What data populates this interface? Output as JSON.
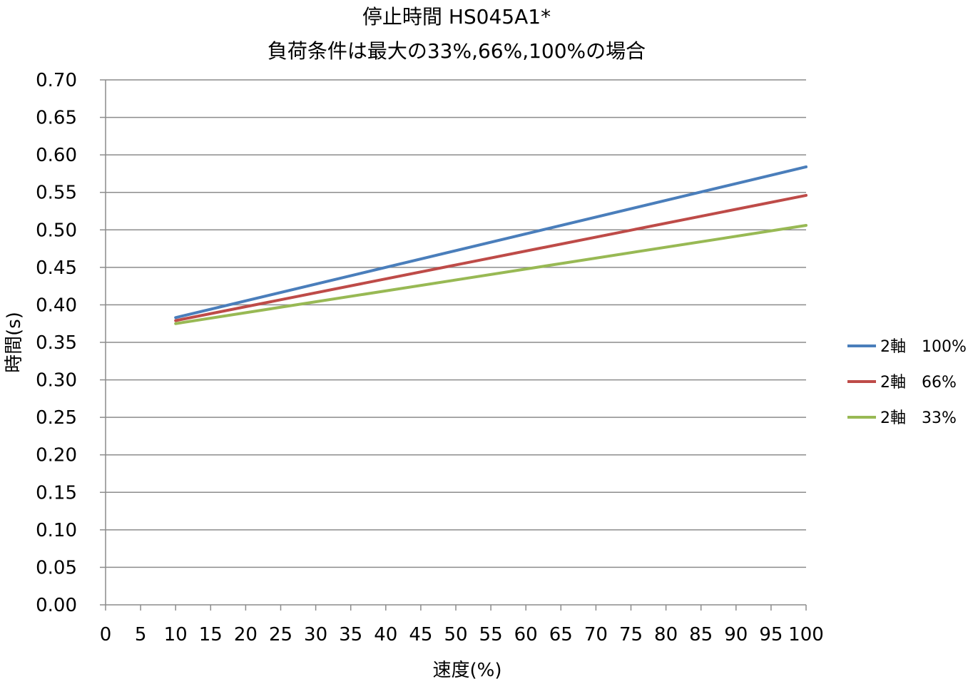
{
  "chart_data": {
    "type": "line",
    "title": "停止時間 HS045A1*",
    "subtitle": "負荷条件は最大の33%,66%,100%の場合",
    "xlabel": "速度(%)",
    "ylabel": "時間(s)",
    "xlim": [
      0,
      100
    ],
    "ylim": [
      0,
      0.7
    ],
    "x_ticks": [
      0,
      5,
      10,
      15,
      20,
      25,
      30,
      35,
      40,
      45,
      50,
      55,
      60,
      65,
      70,
      75,
      80,
      85,
      90,
      95,
      100
    ],
    "y_ticks": [
      "0.00",
      "0.05",
      "0.10",
      "0.15",
      "0.20",
      "0.25",
      "0.30",
      "0.35",
      "0.40",
      "0.45",
      "0.50",
      "0.55",
      "0.60",
      "0.65",
      "0.70"
    ],
    "grid": "horizontal",
    "legend_position": "right",
    "series": [
      {
        "name": "2軸　100%",
        "color": "#4a7ebb",
        "x": [
          10,
          100
        ],
        "y": [
          0.383,
          0.584
        ]
      },
      {
        "name": "2軸　66%",
        "color": "#be4b48",
        "x": [
          10,
          100
        ],
        "y": [
          0.379,
          0.546
        ]
      },
      {
        "name": "2軸　33%",
        "color": "#98b954",
        "x": [
          10,
          100
        ],
        "y": [
          0.375,
          0.506
        ]
      }
    ]
  }
}
